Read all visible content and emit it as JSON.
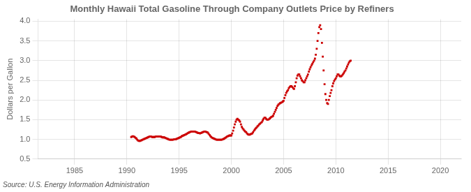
{
  "chart_data": {
    "type": "scatter",
    "title": "Monthly Hawaii Total Gasoline Through Company Outlets Price by Refiners",
    "ylabel": "Dollars per Gallon",
    "source": "Source: U.S. Energy Information Administration",
    "color": "#cc0000",
    "marker": "square",
    "grid": true,
    "xlim": [
      1981.5,
      2022
    ],
    "ylim": [
      0.5,
      4.05
    ],
    "xticks": [
      1985,
      1990,
      1995,
      2000,
      2005,
      2010,
      2015,
      2020
    ],
    "yticks": [
      0.5,
      {
        "value": 1.0,
        "label": "1.0"
      },
      1.5,
      {
        "value": 2.0,
        "label": "2.0"
      },
      2.5,
      {
        "value": 3.0,
        "label": "3.0"
      },
      3.5,
      {
        "value": 4.0,
        "label": "4.0"
      }
    ],
    "x": [
      1990.42,
      1990.5,
      1990.58,
      1990.67,
      1990.75,
      1990.83,
      1990.92,
      1991.0,
      1991.08,
      1991.17,
      1991.25,
      1991.33,
      1991.42,
      1991.5,
      1991.58,
      1991.67,
      1991.75,
      1991.83,
      1991.92,
      1992.0,
      1992.08,
      1992.17,
      1992.25,
      1992.33,
      1992.42,
      1992.5,
      1992.58,
      1992.67,
      1992.75,
      1992.83,
      1992.92,
      1993.0,
      1993.08,
      1993.17,
      1993.25,
      1993.33,
      1993.42,
      1993.5,
      1993.58,
      1993.67,
      1993.75,
      1993.83,
      1993.92,
      1994.0,
      1994.08,
      1994.17,
      1994.25,
      1994.33,
      1994.42,
      1994.5,
      1994.58,
      1994.67,
      1994.75,
      1994.83,
      1994.92,
      1995.0,
      1995.08,
      1995.17,
      1995.25,
      1995.33,
      1995.42,
      1995.5,
      1995.58,
      1995.67,
      1995.75,
      1995.83,
      1995.92,
      1996.0,
      1996.08,
      1996.17,
      1996.25,
      1996.33,
      1996.42,
      1996.5,
      1996.58,
      1996.67,
      1996.75,
      1996.83,
      1996.92,
      1997.0,
      1997.08,
      1997.17,
      1997.25,
      1997.33,
      1997.42,
      1997.5,
      1997.58,
      1997.67,
      1997.75,
      1997.83,
      1997.92,
      1998.0,
      1998.08,
      1998.17,
      1998.25,
      1998.33,
      1998.42,
      1998.5,
      1998.58,
      1998.67,
      1998.75,
      1998.83,
      1998.92,
      1999.0,
      1999.08,
      1999.17,
      1999.25,
      1999.33,
      1999.42,
      1999.5,
      1999.58,
      1999.67,
      1999.75,
      1999.83,
      1999.92,
      2000.0,
      2000.08,
      2000.17,
      2000.25,
      2000.33,
      2000.42,
      2000.5,
      2000.58,
      2000.67,
      2000.75,
      2000.83,
      2000.92,
      2001.0,
      2001.08,
      2001.17,
      2001.25,
      2001.33,
      2001.42,
      2001.5,
      2001.58,
      2001.67,
      2001.75,
      2001.83,
      2001.92,
      2002.0,
      2002.08,
      2002.17,
      2002.25,
      2002.33,
      2002.42,
      2002.5,
      2002.58,
      2002.67,
      2002.75,
      2002.83,
      2002.92,
      2003.0,
      2003.08,
      2003.17,
      2003.25,
      2003.33,
      2003.42,
      2003.5,
      2003.58,
      2003.67,
      2003.75,
      2003.83,
      2003.92,
      2004.0,
      2004.08,
      2004.17,
      2004.25,
      2004.33,
      2004.42,
      2004.5,
      2004.58,
      2004.67,
      2004.75,
      2004.83,
      2004.92,
      2005.0,
      2005.08,
      2005.17,
      2005.25,
      2005.33,
      2005.42,
      2005.5,
      2005.58,
      2005.67,
      2005.75,
      2005.83,
      2005.92,
      2006.0,
      2006.08,
      2006.17,
      2006.25,
      2006.33,
      2006.42,
      2006.5,
      2006.58,
      2006.67,
      2006.75,
      2006.83,
      2006.92,
      2007.0,
      2007.08,
      2007.17,
      2007.25,
      2007.33,
      2007.42,
      2007.5,
      2007.58,
      2007.67,
      2007.75,
      2007.83,
      2007.92,
      2008.0,
      2008.08,
      2008.17,
      2008.25,
      2008.33,
      2008.42,
      2008.5,
      2008.58,
      2008.67,
      2008.75,
      2008.83,
      2008.92,
      2009.0,
      2009.08,
      2009.17,
      2009.25,
      2009.33,
      2009.42,
      2009.5,
      2009.58,
      2009.67,
      2009.75,
      2009.83,
      2009.92,
      2010.0,
      2010.08,
      2010.17,
      2010.25,
      2010.33,
      2010.42,
      2010.5,
      2010.58,
      2010.67,
      2010.75,
      2010.83,
      2010.92,
      2011.0,
      2011.08,
      2011.17,
      2011.25,
      2011.33,
      2011.42
    ],
    "values": [
      1.06,
      1.07,
      1.08,
      1.07,
      1.06,
      1.04,
      1.02,
      0.99,
      0.97,
      0.96,
      0.96,
      0.97,
      0.98,
      0.99,
      1.0,
      1.01,
      1.02,
      1.03,
      1.04,
      1.05,
      1.06,
      1.07,
      1.07,
      1.07,
      1.06,
      1.06,
      1.06,
      1.06,
      1.07,
      1.07,
      1.07,
      1.07,
      1.07,
      1.07,
      1.07,
      1.06,
      1.05,
      1.05,
      1.05,
      1.04,
      1.03,
      1.02,
      1.01,
      1.0,
      0.99,
      0.99,
      0.99,
      0.99,
      0.99,
      1.0,
      1.0,
      1.0,
      1.01,
      1.02,
      1.03,
      1.04,
      1.05,
      1.06,
      1.08,
      1.09,
      1.1,
      1.11,
      1.12,
      1.13,
      1.14,
      1.16,
      1.17,
      1.18,
      1.19,
      1.2,
      1.2,
      1.2,
      1.2,
      1.2,
      1.19,
      1.18,
      1.17,
      1.16,
      1.16,
      1.15,
      1.16,
      1.17,
      1.18,
      1.19,
      1.2,
      1.2,
      1.19,
      1.18,
      1.17,
      1.14,
      1.11,
      1.08,
      1.06,
      1.04,
      1.03,
      1.02,
      1.01,
      1.0,
      0.99,
      0.99,
      0.99,
      0.99,
      0.99,
      0.99,
      0.99,
      1.0,
      1.01,
      1.02,
      1.04,
      1.05,
      1.07,
      1.08,
      1.09,
      1.1,
      1.1,
      1.1,
      1.15,
      1.22,
      1.3,
      1.38,
      1.45,
      1.5,
      1.52,
      1.5,
      1.48,
      1.45,
      1.38,
      1.32,
      1.28,
      1.25,
      1.22,
      1.2,
      1.18,
      1.15,
      1.13,
      1.12,
      1.12,
      1.13,
      1.14,
      1.15,
      1.18,
      1.22,
      1.25,
      1.28,
      1.3,
      1.33,
      1.35,
      1.38,
      1.4,
      1.42,
      1.44,
      1.48,
      1.52,
      1.55,
      1.55,
      1.52,
      1.5,
      1.5,
      1.51,
      1.53,
      1.55,
      1.57,
      1.58,
      1.6,
      1.65,
      1.7,
      1.75,
      1.8,
      1.85,
      1.88,
      1.9,
      1.92,
      1.93,
      1.94,
      1.96,
      1.98,
      2.05,
      2.12,
      2.18,
      2.22,
      2.25,
      2.3,
      2.33,
      2.35,
      2.35,
      2.33,
      2.3,
      2.28,
      2.35,
      2.45,
      2.55,
      2.62,
      2.65,
      2.65,
      2.6,
      2.55,
      2.5,
      2.48,
      2.45,
      2.45,
      2.5,
      2.55,
      2.6,
      2.65,
      2.72,
      2.78,
      2.83,
      2.88,
      2.92,
      2.96,
      3.0,
      3.05,
      3.15,
      3.3,
      3.5,
      3.7,
      3.85,
      3.9,
      3.8,
      3.45,
      3.1,
      2.75,
      2.4,
      2.15,
      2.0,
      1.92,
      1.9,
      2.0,
      2.1,
      2.18,
      2.25,
      2.35,
      2.42,
      2.48,
      2.52,
      2.55,
      2.6,
      2.65,
      2.65,
      2.62,
      2.6,
      2.6,
      2.62,
      2.65,
      2.68,
      2.72,
      2.75,
      2.8,
      2.85,
      2.9,
      2.95,
      2.98,
      3.0
    ]
  }
}
